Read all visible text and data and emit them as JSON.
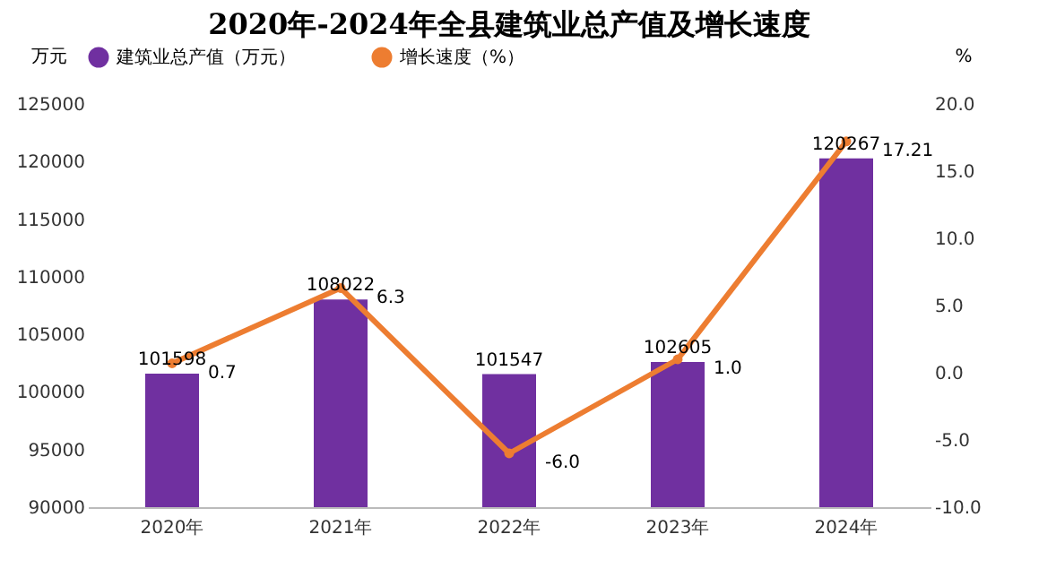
{
  "chart_data": {
    "type": "bar",
    "title": "2020年-2024年全县建筑业总产值及增长速度",
    "ylabel": "万元",
    "y2label": "%",
    "categories": [
      "2020年",
      "2021年",
      "2022年",
      "2023年",
      "2024年"
    ],
    "series": [
      {
        "name": "建筑业总产值（万元）",
        "type": "bar",
        "color": "#7030a0",
        "values": [
          101598,
          108022,
          101547,
          102605,
          120267
        ]
      },
      {
        "name": "增长速度（%）",
        "type": "line",
        "axis": "y2",
        "color": "#ed7d31",
        "values": [
          0.7,
          6.3,
          -6.0,
          1.0,
          17.21
        ],
        "value_labels": [
          "0.7",
          "6.3",
          "-6.0",
          "1.0",
          "17.21"
        ]
      }
    ],
    "ylim": [
      90000,
      125000
    ],
    "yticks": [
      90000,
      95000,
      100000,
      105000,
      110000,
      115000,
      120000,
      125000
    ],
    "y2lim": [
      -10,
      20
    ],
    "y2ticks": [
      {
        "value": -10,
        "label": "-10.0"
      },
      {
        "value": -5,
        "label": "-5.0"
      },
      {
        "value": 0,
        "label": "0.0"
      },
      {
        "value": 5,
        "label": "5.0"
      },
      {
        "value": 10,
        "label": "10.0"
      },
      {
        "value": 15,
        "label": "15.0"
      },
      {
        "value": 20,
        "label": "20.0"
      }
    ],
    "data_labels": true,
    "legend": "top",
    "grid": false,
    "marker": "circle",
    "line_style": "solid"
  }
}
